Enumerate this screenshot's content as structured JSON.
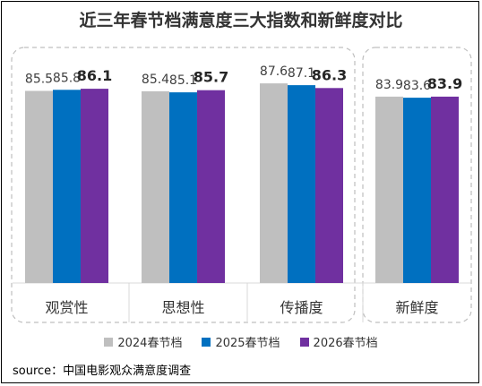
{
  "title": "近三年春节档满意度三大指数和新鲜度对比",
  "source": "source：中国电影观众满意度调查",
  "chart_data": {
    "type": "bar",
    "title": "近三年春节档满意度三大指数和新鲜度对比",
    "categories": [
      "观赏性",
      "思想性",
      "传播度",
      "新鲜度"
    ],
    "series": [
      {
        "name": "2024春节档",
        "color": "#bfbfbf",
        "values": [
          85.5,
          85.4,
          87.6,
          83.9
        ]
      },
      {
        "name": "2025春节档",
        "color": "#0070c0",
        "values": [
          85.8,
          85.1,
          87.1,
          83.6
        ]
      },
      {
        "name": "2026春节档",
        "color": "#7030a0",
        "values": [
          86.1,
          85.7,
          86.3,
          83.9
        ]
      }
    ],
    "value_labels": [
      [
        "85.5",
        "85.4",
        "87.6",
        "83.9"
      ],
      [
        "85.8",
        "85.1",
        "87.1",
        "83.6"
      ],
      [
        "86.1",
        "85.7",
        "86.3",
        "83.9"
      ]
    ],
    "ylim": [
      70,
      90
    ],
    "legend_position": "bottom",
    "grid": false
  }
}
